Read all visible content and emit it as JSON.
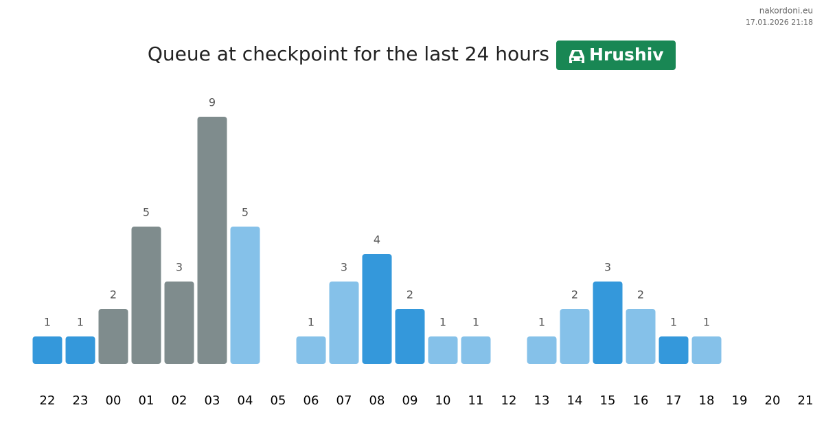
{
  "chart_data": {
    "type": "bar",
    "title": "Queue at checkpoint for the last 24 hours",
    "checkpoint": "Hrushiv",
    "source": "nakordoni.eu",
    "timestamp": "17.01.2026 21:18",
    "categories": [
      "22",
      "23",
      "00",
      "01",
      "02",
      "03",
      "04",
      "05",
      "06",
      "07",
      "08",
      "09",
      "10",
      "11",
      "12",
      "13",
      "14",
      "15",
      "16",
      "17",
      "18",
      "19",
      "20",
      "21"
    ],
    "values": [
      1,
      1,
      2,
      5,
      3,
      9,
      5,
      null,
      1,
      3,
      4,
      2,
      1,
      1,
      null,
      1,
      2,
      3,
      2,
      1,
      1,
      null,
      null,
      null
    ],
    "colors": [
      "#3498db",
      "#3498db",
      "#7f8c8d",
      "#7f8c8d",
      "#7f8c8d",
      "#7f8c8d",
      "#85c1e9",
      null,
      "#85c1e9",
      "#85c1e9",
      "#3498db",
      "#3498db",
      "#85c1e9",
      "#85c1e9",
      null,
      "#85c1e9",
      "#85c1e9",
      "#3498db",
      "#85c1e9",
      "#3498db",
      "#85c1e9",
      null,
      null,
      null
    ],
    "ylim": [
      0,
      9
    ]
  }
}
